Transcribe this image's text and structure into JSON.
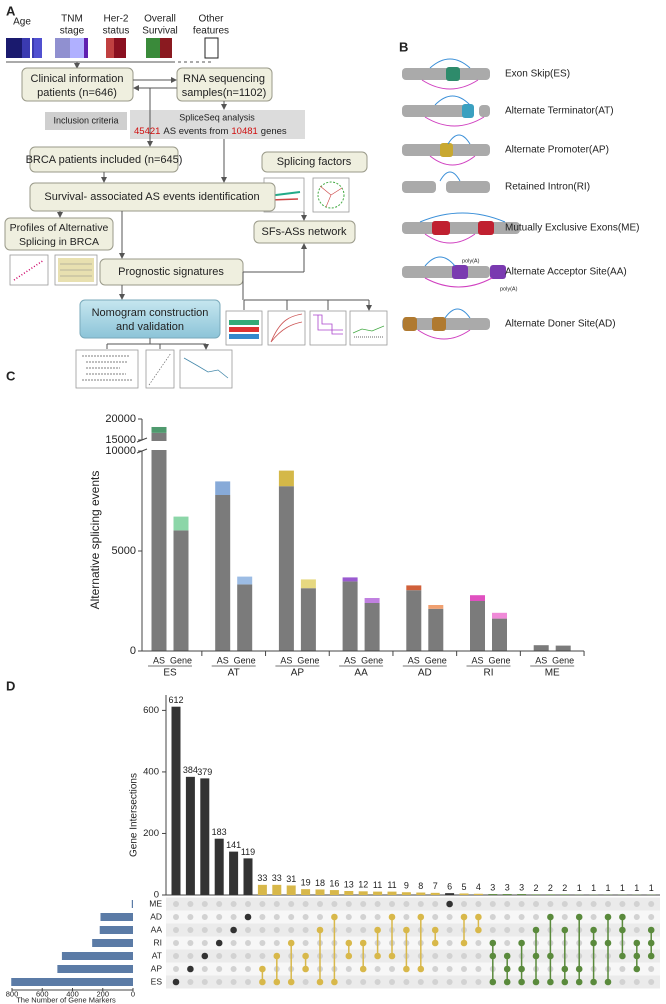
{
  "panel_a": {
    "label": "A",
    "features": [
      [
        "Age"
      ],
      [
        "TNM",
        "stage"
      ],
      [
        "Her-2",
        "status"
      ],
      [
        "Overall",
        "Survival"
      ],
      [
        "Other",
        "features"
      ]
    ],
    "clinical": [
      "Clinical information",
      "patients (n=646)"
    ],
    "rnaseq": [
      "RNA sequencing",
      "samples(n=1102)"
    ],
    "inclusion": "Inclusion criteria",
    "spliceseq": {
      "title": "SpliceSeq analysis",
      "events": "45421",
      "events_text": "AS events from",
      "genes": "10481",
      "genes_text": "genes"
    },
    "brca": "BRCA patients included (n=645)",
    "splicing_factors": "Splicing factors",
    "survival": "Survival- associated AS events identification",
    "profiles": [
      "Profiles of Alternative",
      "Splicing in BRCA"
    ],
    "network": "SFs-ASs network",
    "prognostic": "Prognostic signatures",
    "nomogram": [
      "Nomogram construction",
      "and validation"
    ]
  },
  "panel_b": {
    "label": "B",
    "types": [
      "Exon Skip(ES)",
      "Alternate Terminator(AT)",
      "Alternate Promoter(AP)",
      "Retained Intron(RI)",
      "Mutually Exclusive Exons(ME)",
      "Alternate Acceptor Site(AA)",
      "Alternate Doner Site(AD)"
    ],
    "poly_a": [
      "poly(A)",
      "poly(A)"
    ]
  },
  "chart_data": [
    {
      "type": "stacked-bar",
      "panel": "C",
      "ylabel": "Alternative splicing events",
      "categories": [
        "AS",
        "Gene",
        "AS",
        "Gene",
        "AS",
        "Gene",
        "AS",
        "Gene",
        "AS",
        "Gene",
        "AS",
        "Gene",
        "AS",
        "Gene"
      ],
      "groups": [
        "ES",
        "AT",
        "AP",
        "AA",
        "AD",
        "RI",
        "ME"
      ],
      "series": [
        {
          "color": "#7b7b7b",
          "values": [
            16700,
            6030,
            7800,
            3330,
            8240,
            3140,
            3480,
            2400,
            3040,
            2110,
            2500,
            1620,
            290,
            270
          ]
        },
        {
          "colors": [
            "#4f9a6e",
            "#8cd6a8",
            "#87aad8",
            "#9cbce4",
            "#d4b848",
            "#e6d880",
            "#9a5ad0",
            "#c080e0",
            "#d0603a",
            "#f0a070",
            "#e050c0",
            "#f08ad8",
            "#888888",
            "#aaaaaa"
          ],
          "values": [
            1400,
            690,
            680,
            390,
            780,
            440,
            200,
            250,
            240,
            190,
            290,
            290,
            0,
            0
          ]
        }
      ],
      "ylim": [
        0,
        20000
      ],
      "yticks": [
        0,
        5000,
        10000,
        15000,
        20000
      ],
      "axis_break": [
        10000,
        15000
      ]
    },
    {
      "type": "upset",
      "panel": "D",
      "ylabel": "Gene Intersections",
      "values": [
        612,
        384,
        379,
        183,
        141,
        119,
        33,
        33,
        31,
        19,
        18,
        16,
        13,
        12,
        11,
        11,
        9,
        8,
        7,
        6,
        5,
        4,
        3,
        3,
        3,
        2,
        2,
        2,
        1,
        1,
        1,
        1,
        1,
        1
      ],
      "colors": [
        "#333333",
        "#333333",
        "#333333",
        "#333333",
        "#333333",
        "#333333",
        "#d8b84a",
        "#d8b84a",
        "#d8b84a",
        "#d8b84a",
        "#d8b84a",
        "#d8b84a",
        "#d8b84a",
        "#d8b84a",
        "#d8b84a",
        "#d8b84a",
        "#d8b84a",
        "#d8b84a",
        "#d8b84a",
        "#333333",
        "#d8b84a",
        "#d8b84a",
        "#5a8a3c",
        "#5a8a3c",
        "#5a8a3c",
        "#5a8a3c",
        "#5a8a3c",
        "#5a8a3c",
        "#5a8a3c",
        "#5a8a3c",
        "#5a8a3c",
        "#5a8a3c",
        "#5a8a3c",
        "#5a8a3c"
      ],
      "members": [
        [
          6
        ],
        [
          5
        ],
        [
          4
        ],
        [
          3
        ],
        [
          2
        ],
        [
          1
        ],
        [
          5,
          6
        ],
        [
          4,
          6
        ],
        [
          3,
          6
        ],
        [
          4,
          5
        ],
        [
          2,
          6
        ],
        [
          1,
          6
        ],
        [
          3,
          4
        ],
        [
          3,
          5
        ],
        [
          2,
          4
        ],
        [
          1,
          4
        ],
        [
          2,
          5
        ],
        [
          1,
          5
        ],
        [
          2,
          3
        ],
        [
          0
        ],
        [
          1,
          3
        ],
        [
          1,
          2
        ],
        [
          3,
          4,
          6
        ],
        [
          4,
          5,
          6
        ],
        [
          3,
          5,
          6
        ],
        [
          2,
          4,
          6
        ],
        [
          1,
          4,
          6
        ],
        [
          2,
          5,
          6
        ],
        [
          1,
          5,
          6
        ],
        [
          2,
          3,
          6
        ],
        [
          1,
          3,
          6
        ],
        [
          1,
          2,
          4
        ],
        [
          3,
          4,
          5
        ],
        [
          2,
          3,
          4
        ]
      ],
      "ylim": [
        0,
        650
      ],
      "yticks": [
        0,
        200,
        400,
        600
      ],
      "sets": [
        "ME",
        "AD",
        "AA",
        "RI",
        "AT",
        "AP",
        "ES"
      ],
      "set_sizes": [
        8,
        215,
        220,
        270,
        470,
        500,
        805
      ],
      "set_color": "#5b7ba6",
      "set_xlabel": "The Number of Gene Markers",
      "set_xlim": [
        800,
        0
      ],
      "set_xticks": [
        800,
        600,
        400,
        200,
        0
      ]
    }
  ]
}
